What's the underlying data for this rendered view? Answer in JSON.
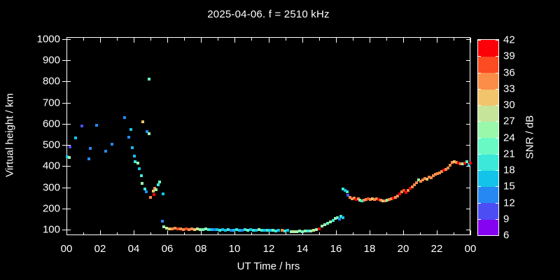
{
  "colors": {
    "background": "#000000",
    "foreground": "#ffffff"
  },
  "chart_data": {
    "type": "scatter",
    "title": "2025-04-06. f = 2510 kHz",
    "xlabel": "UT Time / hrs",
    "ylabel": "Virtual height / km",
    "xlim": [
      0,
      24
    ],
    "ylim": [
      70,
      1010
    ],
    "grid": false,
    "x_tick_values": [
      0,
      2,
      4,
      6,
      8,
      10,
      12,
      14,
      16,
      18,
      20,
      22,
      24
    ],
    "x_tick_labels": [
      "00",
      "02",
      "04",
      "06",
      "08",
      "10",
      "12",
      "14",
      "16",
      "18",
      "20",
      "22",
      "00"
    ],
    "x_minor_tick_values": [
      1,
      3,
      5,
      7,
      9,
      11,
      13,
      15,
      17,
      19,
      21,
      23
    ],
    "y_tick_values": [
      100,
      200,
      300,
      400,
      500,
      600,
      700,
      800,
      900,
      1000
    ],
    "y_tick_labels": [
      "100",
      "200",
      "300",
      "400",
      "500",
      "600",
      "700",
      "800",
      "900",
      "1000"
    ],
    "colorbar": {
      "label": "SNR / dB",
      "min": 6,
      "max": 42,
      "step": 3,
      "tick_labels": [
        "6",
        "9",
        "12",
        "15",
        "18",
        "21",
        "24",
        "27",
        "30",
        "33",
        "36",
        "39",
        "42"
      ],
      "legend_position": "right",
      "colors": [
        "#8503F1",
        "#4C4DF3",
        "#2689F3",
        "#13C3E9",
        "#3BE8D9",
        "#69F9C4",
        "#9AF8AB",
        "#C6E59A",
        "#F2C46C",
        "#FB8D49",
        "#FC4A23",
        "#FB0007"
      ]
    },
    "points_format": [
      "ut_time_hrs",
      "virtual_height_km",
      "snr_db"
    ],
    "points": [
      [
        0.04,
        444,
        16
      ],
      [
        0.17,
        441,
        25
      ],
      [
        0.21,
        490,
        10
      ],
      [
        0.54,
        533,
        16
      ],
      [
        0.92,
        590,
        10
      ],
      [
        1.33,
        434,
        13
      ],
      [
        1.41,
        484,
        13
      ],
      [
        1.79,
        593,
        13
      ],
      [
        2.33,
        471,
        13
      ],
      [
        2.7,
        504,
        13
      ],
      [
        3.45,
        629,
        13
      ],
      [
        3.7,
        537,
        13
      ],
      [
        3.83,
        573,
        16
      ],
      [
        3.91,
        487,
        16
      ],
      [
        4.53,
        610,
        31
      ],
      [
        4.78,
        563,
        13
      ],
      [
        4.91,
        553,
        25
      ],
      [
        4.91,
        811,
        22
      ],
      [
        4.03,
        447,
        16
      ],
      [
        4.08,
        421,
        19
      ],
      [
        4.24,
        414,
        25
      ],
      [
        4.33,
        388,
        16
      ],
      [
        4.45,
        355,
        19
      ],
      [
        4.49,
        318,
        25
      ],
      [
        4.66,
        292,
        19
      ],
      [
        4.74,
        279,
        13
      ],
      [
        4.99,
        252,
        34
      ],
      [
        5.16,
        282,
        31
      ],
      [
        5.2,
        265,
        40
      ],
      [
        5.24,
        295,
        34
      ],
      [
        5.32,
        289,
        25
      ],
      [
        5.45,
        312,
        19
      ],
      [
        5.53,
        325,
        22
      ],
      [
        5.74,
        269,
        16
      ],
      [
        5.7,
        140,
        13
      ],
      [
        5.78,
        113,
        25
      ],
      [
        5.95,
        107,
        28
      ],
      [
        6.11,
        103,
        31
      ],
      [
        6.28,
        103,
        34
      ],
      [
        6.45,
        107,
        34
      ],
      [
        6.61,
        103,
        37
      ],
      [
        6.78,
        103,
        34
      ],
      [
        6.95,
        100,
        34
      ],
      [
        7.11,
        103,
        37
      ],
      [
        7.28,
        100,
        34
      ],
      [
        7.45,
        103,
        34
      ],
      [
        7.61,
        100,
        31
      ],
      [
        7.78,
        103,
        28
      ],
      [
        7.94,
        100,
        25
      ],
      [
        8.11,
        100,
        22
      ],
      [
        8.28,
        103,
        25
      ],
      [
        8.44,
        100,
        19
      ],
      [
        8.61,
        100,
        16
      ],
      [
        8.78,
        100,
        13
      ],
      [
        8.94,
        100,
        16
      ],
      [
        9.11,
        97,
        19
      ],
      [
        9.28,
        100,
        16
      ],
      [
        9.44,
        97,
        16
      ],
      [
        9.61,
        100,
        19
      ],
      [
        9.77,
        97,
        13
      ],
      [
        9.94,
        97,
        16
      ],
      [
        10.11,
        100,
        19
      ],
      [
        10.27,
        97,
        16
      ],
      [
        10.44,
        97,
        13
      ],
      [
        10.61,
        100,
        19
      ],
      [
        10.77,
        97,
        22
      ],
      [
        10.94,
        100,
        16
      ],
      [
        11.11,
        97,
        19
      ],
      [
        11.27,
        97,
        16
      ],
      [
        11.44,
        100,
        25
      ],
      [
        11.6,
        97,
        19
      ],
      [
        11.77,
        97,
        16
      ],
      [
        11.94,
        97,
        19
      ],
      [
        12.1,
        97,
        16
      ],
      [
        12.27,
        97,
        22
      ],
      [
        12.44,
        93,
        19
      ],
      [
        12.6,
        97,
        16
      ],
      [
        12.81,
        97,
        34
      ],
      [
        12.98,
        93,
        19
      ],
      [
        13.14,
        97,
        16
      ],
      [
        13.35,
        90,
        25
      ],
      [
        13.52,
        90,
        28
      ],
      [
        13.69,
        90,
        25
      ],
      [
        13.85,
        93,
        25
      ],
      [
        14.02,
        90,
        22
      ],
      [
        14.18,
        93,
        25
      ],
      [
        14.35,
        93,
        19
      ],
      [
        14.52,
        93,
        25
      ],
      [
        14.68,
        97,
        28
      ],
      [
        14.85,
        100,
        25
      ],
      [
        15.02,
        103,
        40
      ],
      [
        15.18,
        117,
        25
      ],
      [
        15.35,
        123,
        25
      ],
      [
        15.51,
        130,
        22
      ],
      [
        15.68,
        136,
        25
      ],
      [
        15.85,
        143,
        19
      ],
      [
        15.97,
        153,
        25
      ],
      [
        16.1,
        156,
        22
      ],
      [
        16.22,
        150,
        13
      ],
      [
        16.31,
        163,
        19
      ],
      [
        16.43,
        156,
        16
      ],
      [
        16.43,
        292,
        19
      ],
      [
        16.56,
        285,
        16
      ],
      [
        16.68,
        279,
        19
      ],
      [
        16.72,
        262,
        10
      ],
      [
        16.85,
        252,
        34
      ],
      [
        16.97,
        246,
        34
      ],
      [
        17.1,
        249,
        34
      ],
      [
        17.22,
        242,
        40
      ],
      [
        17.35,
        246,
        34
      ],
      [
        17.43,
        239,
        25
      ],
      [
        17.55,
        236,
        19
      ],
      [
        17.68,
        239,
        34
      ],
      [
        17.8,
        242,
        34
      ],
      [
        17.93,
        246,
        37
      ],
      [
        18.05,
        242,
        34
      ],
      [
        18.18,
        246,
        31
      ],
      [
        18.3,
        242,
        34
      ],
      [
        18.43,
        246,
        34
      ],
      [
        18.55,
        242,
        40
      ],
      [
        18.68,
        239,
        34
      ],
      [
        18.8,
        236,
        31
      ],
      [
        18.93,
        236,
        34
      ],
      [
        19.05,
        239,
        25
      ],
      [
        19.17,
        242,
        34
      ],
      [
        19.3,
        246,
        34
      ],
      [
        19.42,
        249,
        40
      ],
      [
        19.55,
        252,
        34
      ],
      [
        19.67,
        259,
        34
      ],
      [
        19.8,
        269,
        40
      ],
      [
        19.92,
        279,
        34
      ],
      [
        20.05,
        285,
        37
      ],
      [
        20.17,
        275,
        40
      ],
      [
        20.3,
        285,
        34
      ],
      [
        20.42,
        295,
        40
      ],
      [
        20.55,
        302,
        34
      ],
      [
        20.67,
        312,
        34
      ],
      [
        20.8,
        322,
        34
      ],
      [
        20.92,
        335,
        25
      ],
      [
        21.05,
        328,
        34
      ],
      [
        21.17,
        335,
        34
      ],
      [
        21.3,
        342,
        34
      ],
      [
        21.42,
        338,
        31
      ],
      [
        21.55,
        348,
        34
      ],
      [
        21.67,
        345,
        34
      ],
      [
        21.8,
        355,
        34
      ],
      [
        21.92,
        361,
        34
      ],
      [
        22.04,
        365,
        34
      ],
      [
        22.17,
        368,
        34
      ],
      [
        22.29,
        375,
        34
      ],
      [
        22.42,
        381,
        40
      ],
      [
        22.54,
        385,
        34
      ],
      [
        22.67,
        391,
        34
      ],
      [
        22.79,
        404,
        34
      ],
      [
        22.92,
        418,
        34
      ],
      [
        23.04,
        421,
        31
      ],
      [
        23.17,
        418,
        34
      ],
      [
        23.29,
        414,
        40
      ],
      [
        23.42,
        411,
        34
      ],
      [
        23.54,
        411,
        25
      ],
      [
        23.67,
        414,
        40
      ],
      [
        23.79,
        421,
        22
      ],
      [
        23.92,
        408,
        16
      ],
      [
        24.0,
        414,
        40
      ]
    ]
  }
}
